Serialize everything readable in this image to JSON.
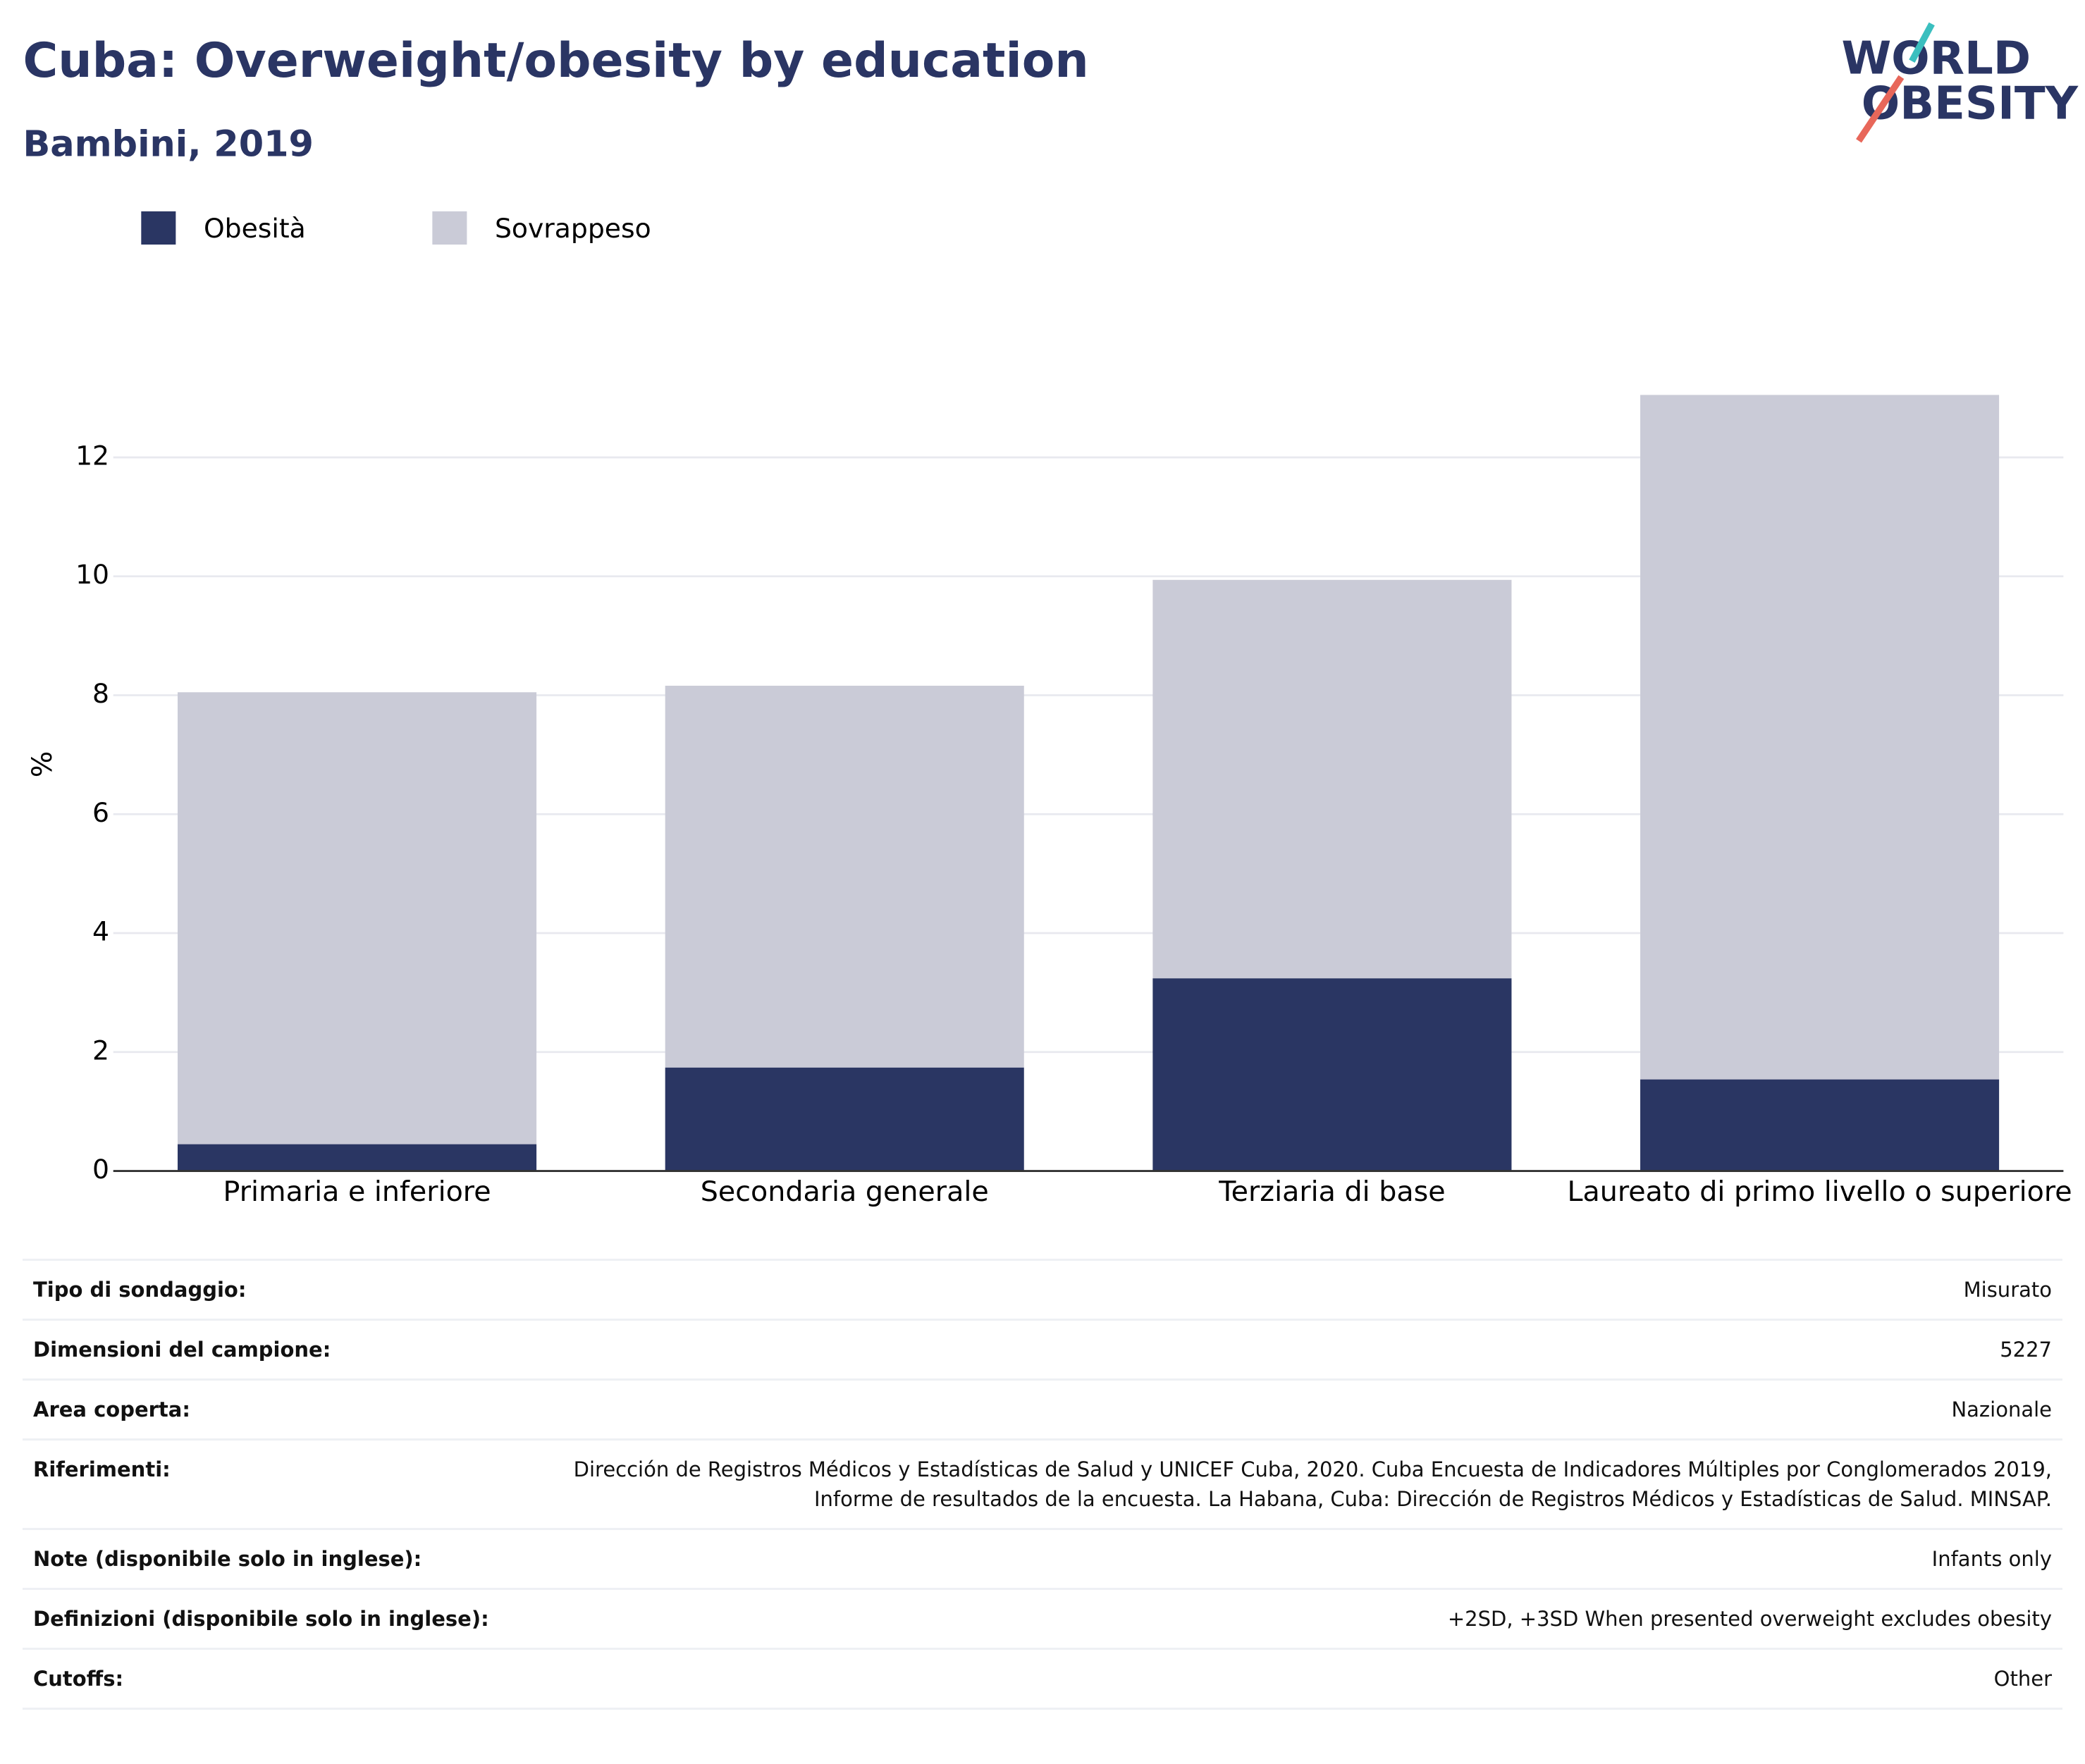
{
  "chart_data": {
    "type": "stacked_bar",
    "title": "Cuba: Overweight/obesity by education",
    "subtitle": "Bambini, 2019",
    "y_label": "%",
    "categories": [
      "Primaria e inferiore",
      "Secondaria generale",
      "Terziaria di base",
      "Laureato di primo livello o superiore"
    ],
    "series": [
      {
        "name": "Obesità",
        "color": "#2a3663",
        "values": [
          0.45,
          1.74,
          3.24,
          1.54
        ]
      },
      {
        "name": "Sovrappeso",
        "color": "#cacbd7",
        "values": [
          7.6,
          6.42,
          6.7,
          11.51
        ]
      }
    ],
    "ylim": [
      0,
      13.5
    ],
    "yticks": [
      0,
      2,
      4,
      6,
      8,
      10,
      12
    ],
    "grid": true,
    "legend": "top-left"
  },
  "logo": [
    "WORLD",
    "OBESITY"
  ],
  "table": {
    "rows": [
      [
        "Tipo di sondaggio:",
        "Misurato"
      ],
      [
        "Dimensioni del campione:",
        "5227"
      ],
      [
        "Area coperta:",
        "Nazionale"
      ],
      [
        "Riferimenti:",
        "Dirección de Registros Médicos y Estadísticas de Salud y UNICEF Cuba, 2020. Cuba Encuesta de Indicadores Múltiples por Conglomerados 2019, Informe de resultados de la encuesta. La Habana, Cuba: Dirección de Registros Médicos y Estadísticas de Salud. MINSAP."
      ],
      [
        "Note (disponibile solo in inglese):",
        "Infants only"
      ],
      [
        "Definizioni (disponibile solo in inglese):",
        "+2SD, +3SD When presented overweight excludes obesity"
      ],
      [
        "Cutoffs:",
        "Other"
      ]
    ]
  }
}
